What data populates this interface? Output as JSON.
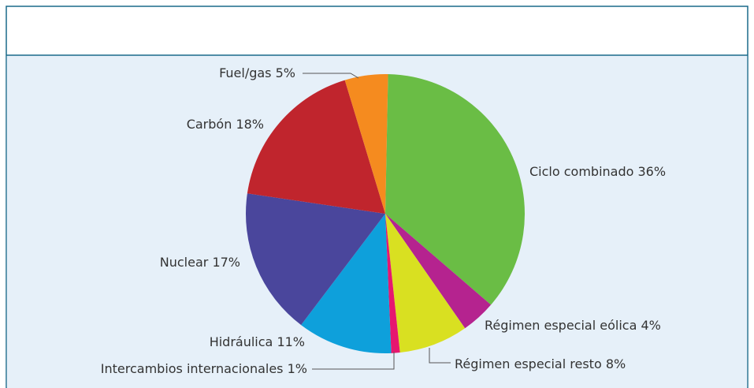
{
  "chart_data": {
    "type": "pie",
    "categories": [
      "Ciclo combinado",
      "Régimen especial eólica",
      "Régimen especial resto",
      "Intercambios internacionales",
      "Hidráulica",
      "Nuclear",
      "Carbón",
      "Fuel/gas"
    ],
    "values": [
      36,
      4,
      8,
      1,
      11,
      17,
      18,
      5
    ],
    "value_labels": [
      "36%",
      "4%",
      "8%",
      "1%",
      "11%",
      "17%",
      "18%",
      "5%"
    ],
    "colors": [
      "#6abd45",
      "#b5238f",
      "#d9e021",
      "#e6176f",
      "#0ea0db",
      "#4a469c",
      "#c0252d",
      "#f58b1f"
    ]
  }
}
